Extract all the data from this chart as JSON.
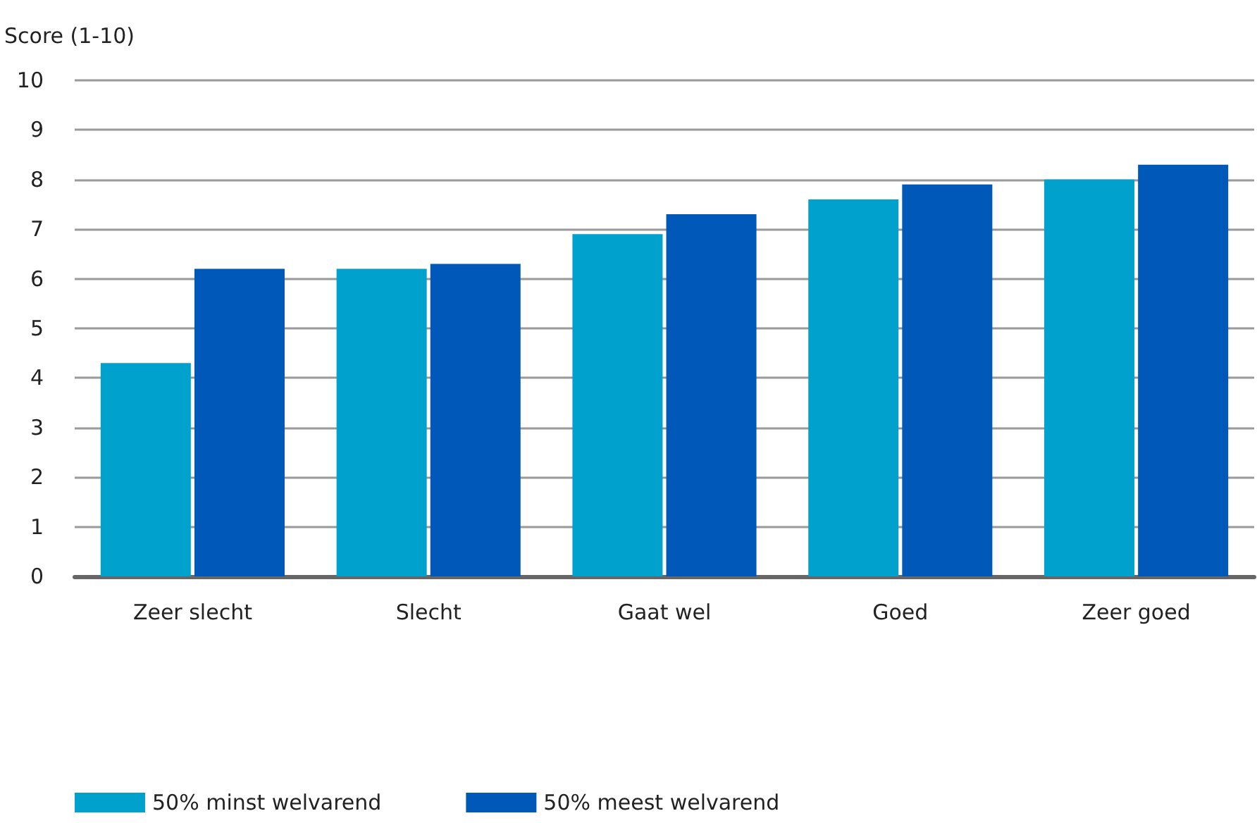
{
  "chart_data": {
    "type": "bar",
    "ylabel": "Score (1-10)",
    "categories": [
      "Zeer slecht",
      "Slecht",
      "Gaat wel",
      "Goed",
      "Zeer goed"
    ],
    "series": [
      {
        "name": "50% minst welvarend",
        "color": "#00a1cd",
        "values": [
          4.3,
          6.2,
          6.9,
          7.6,
          8.0
        ]
      },
      {
        "name": "50% meest welvarend",
        "color": "#0058b8",
        "values": [
          6.2,
          6.3,
          7.3,
          7.9,
          8.3
        ]
      }
    ],
    "ylim": [
      0,
      10
    ],
    "yticks": [
      0,
      1,
      2,
      3,
      4,
      5,
      6,
      7,
      8,
      9,
      10
    ],
    "grid": "y",
    "legend": "bottom left"
  }
}
